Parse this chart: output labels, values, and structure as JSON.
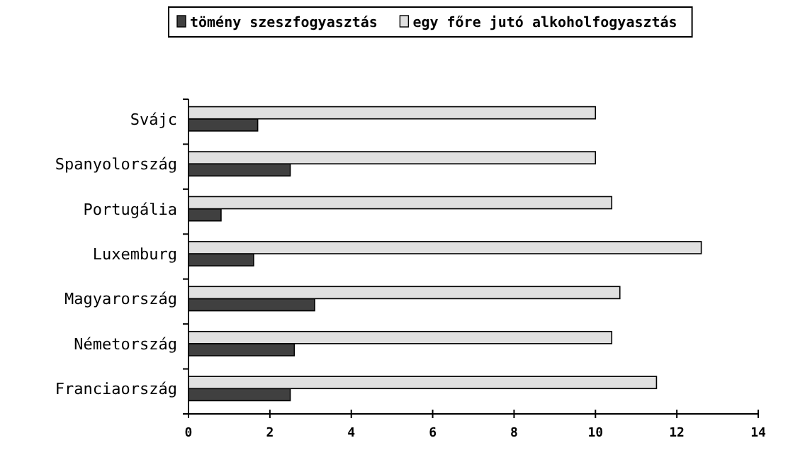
{
  "chart_data": {
    "type": "bar",
    "orientation": "horizontal",
    "categories": [
      "Svájc",
      "Spanyolország",
      "Portugália",
      "Luxemburg",
      "Magyarország",
      "Németország",
      "Franciaország"
    ],
    "series": [
      {
        "name": "tömény szeszfogyasztás",
        "color": "#404040",
        "values": [
          1.7,
          2.5,
          0.8,
          1.6,
          3.1,
          2.6,
          2.5
        ]
      },
      {
        "name": "egy főre jutó alkoholfogyasztás",
        "color": "#e0e0e0",
        "values": [
          10.0,
          10.0,
          10.4,
          12.6,
          10.6,
          10.4,
          11.5
        ]
      }
    ],
    "xlim": [
      0,
      14
    ],
    "xticks": [
      0,
      2,
      4,
      6,
      8,
      10,
      12,
      14
    ],
    "grid": false,
    "legend": "top"
  }
}
